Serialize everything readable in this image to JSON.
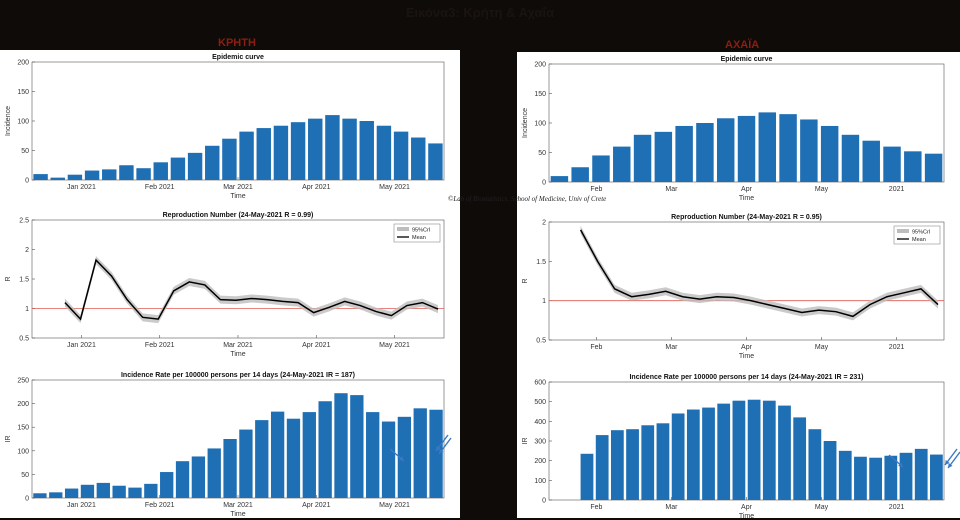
{
  "page_title": "Εικόνα3: Κρήτη & Αχαΐα",
  "regions": {
    "left": "ΚΡΗΤΗ",
    "right": "ΑΧΑΪΑ"
  },
  "copyright": "©Lab of Biostatistics, School of Medicine, Univ of Crete",
  "colors": {
    "bar": "#1f6fb4",
    "mean": "#000000",
    "band": "#bdbdbd",
    "threshold": "#e05a50",
    "arrow": "#3b78c4"
  },
  "chart_data": [
    {
      "id": "crete_epi",
      "type": "bar",
      "title": "Epidemic curve",
      "xlabel": "Time",
      "ylabel": "Incidence",
      "ylim": [
        0,
        200
      ],
      "yticks": [
        0,
        50,
        100,
        150,
        200
      ],
      "xticks": [
        "Jan 2021",
        "Feb 2021",
        "Mar 2021",
        "Apr 2021",
        "May 2021"
      ],
      "series": [
        {
          "values": [
            10,
            4,
            9,
            16,
            18,
            25,
            20,
            30,
            38,
            46,
            58,
            70,
            82,
            88,
            92,
            98,
            104,
            110,
            104,
            100,
            92,
            82,
            72,
            62
          ]
        }
      ]
    },
    {
      "id": "crete_r",
      "type": "line",
      "title": "Reproduction Number (24-May-2021 R = 0.99)",
      "xlabel": "Time",
      "ylabel": "R",
      "ylim": [
        0.5,
        2.5
      ],
      "yticks": [
        0.5,
        1,
        1.5,
        2,
        2.5
      ],
      "xticks": [
        "Jan 2021",
        "Feb 2021",
        "Mar 2021",
        "Apr 2021",
        "May 2021"
      ],
      "legend": [
        "95%CrI",
        "Mean"
      ],
      "series": [
        {
          "name": "Mean",
          "values": [
            1.1,
            0.82,
            1.82,
            1.55,
            1.15,
            0.85,
            0.82,
            1.3,
            1.45,
            1.4,
            1.15,
            1.14,
            1.17,
            1.15,
            1.12,
            1.1,
            0.93,
            1.02,
            1.12,
            1.05,
            0.95,
            0.88,
            1.05,
            1.1,
            0.99
          ]
        }
      ],
      "threshold": 1
    },
    {
      "id": "crete_ir",
      "type": "bar",
      "title": "Incidence Rate per 100000 persons per 14 days (24-May-2021 IR = 187)",
      "xlabel": "Time",
      "ylabel": "IR",
      "ylim": [
        0,
        250
      ],
      "yticks": [
        0,
        50,
        100,
        150,
        200,
        250
      ],
      "xticks": [
        "Jan 2021",
        "Feb 2021",
        "Mar 2021",
        "Apr 2021",
        "May 2021"
      ],
      "series": [
        {
          "values": [
            10,
            12,
            20,
            28,
            32,
            26,
            22,
            30,
            55,
            78,
            88,
            105,
            125,
            145,
            165,
            183,
            168,
            182,
            205,
            222,
            218,
            182,
            162,
            172,
            190,
            187
          ]
        }
      ]
    },
    {
      "id": "achaia_epi",
      "type": "bar",
      "title": "Epidemic curve",
      "xlabel": "Time",
      "ylabel": "Incidence",
      "ylim": [
        0,
        200
      ],
      "yticks": [
        0,
        50,
        100,
        150,
        200
      ],
      "xticks": [
        "Feb",
        "Mar",
        "Apr",
        "May",
        "2021"
      ],
      "series": [
        {
          "values": [
            10,
            25,
            45,
            60,
            80,
            85,
            95,
            100,
            108,
            112,
            118,
            115,
            106,
            95,
            80,
            70,
            60,
            52,
            48
          ]
        }
      ]
    },
    {
      "id": "achaia_r",
      "type": "line",
      "title": "Reproduction Number (24-May-2021 R = 0.95)",
      "xlabel": "Time",
      "ylabel": "R",
      "ylim": [
        0.5,
        2
      ],
      "yticks": [
        0.5,
        1,
        1.5,
        2
      ],
      "xticks": [
        "Feb",
        "Mar",
        "Apr",
        "May",
        "2021"
      ],
      "legend": [
        "95%CrI",
        "Mean"
      ],
      "series": [
        {
          "name": "Mean",
          "values": [
            1.9,
            1.5,
            1.15,
            1.05,
            1.08,
            1.12,
            1.05,
            1.02,
            1.05,
            1.04,
            1.0,
            0.95,
            0.9,
            0.85,
            0.88,
            0.86,
            0.8,
            0.95,
            1.05,
            1.1,
            1.15,
            0.95
          ]
        }
      ],
      "threshold": 1
    },
    {
      "id": "achaia_ir",
      "type": "bar",
      "title": "Incidence Rate per 100000 persons per 14 days (24-May-2021 IR = 231)",
      "xlabel": "Time",
      "ylabel": "IR",
      "ylim": [
        0,
        600
      ],
      "yticks": [
        0,
        100,
        200,
        300,
        400,
        500,
        600
      ],
      "xticks": [
        "Feb",
        "Mar",
        "Apr",
        "May",
        "2021"
      ],
      "series": [
        {
          "values": [
            0,
            0,
            235,
            330,
            355,
            360,
            380,
            390,
            440,
            460,
            470,
            490,
            505,
            510,
            505,
            480,
            420,
            360,
            300,
            250,
            220,
            215,
            225,
            240,
            260,
            231
          ]
        }
      ]
    }
  ]
}
